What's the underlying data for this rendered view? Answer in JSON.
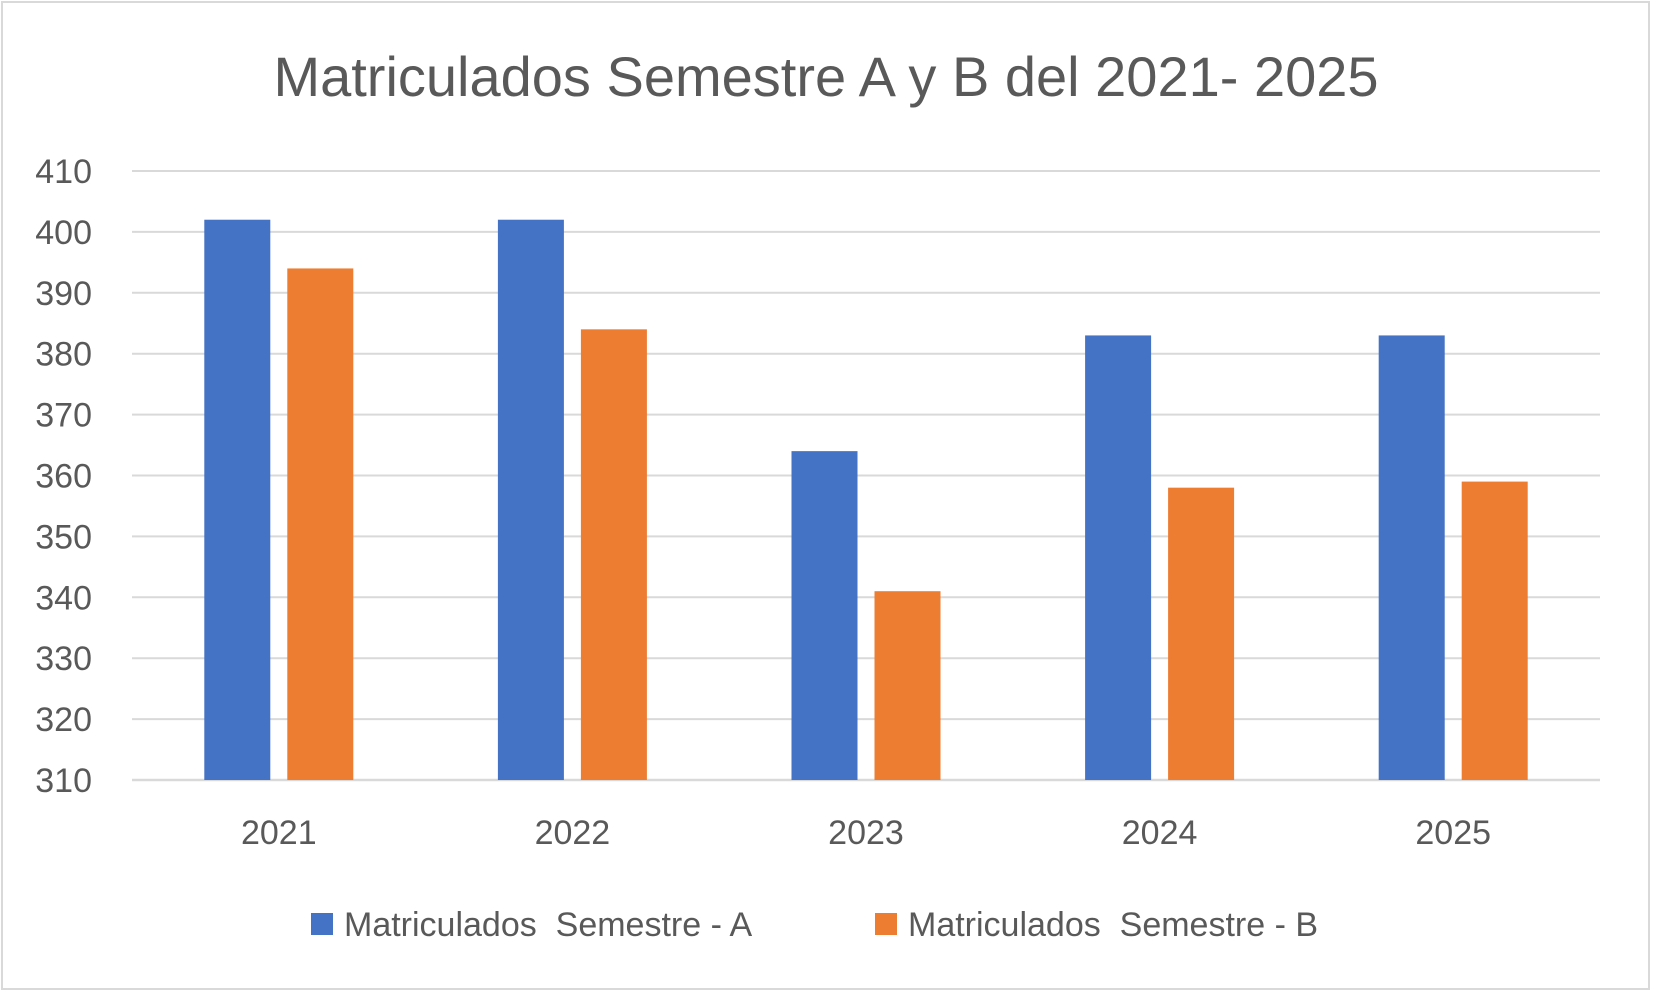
{
  "chart_data": {
    "type": "bar",
    "title": "Matriculados Semestre A y B del 2021- 2025",
    "xlabel": "",
    "ylabel": "",
    "categories": [
      "2021",
      "2022",
      "2023",
      "2024",
      "2025"
    ],
    "series": [
      {
        "name": "Matriculados  Semestre - A",
        "color": "#4472c4",
        "values": [
          402,
          402,
          364,
          383,
          383
        ]
      },
      {
        "name": "Matriculados  Semestre - B",
        "color": "#ed7d31",
        "values": [
          394,
          384,
          341,
          358,
          359
        ]
      }
    ],
    "ylim": [
      310,
      410
    ],
    "yticks": [
      310,
      320,
      330,
      340,
      350,
      360,
      370,
      380,
      390,
      400,
      410
    ],
    "grid": true,
    "legend_position": "bottom"
  }
}
